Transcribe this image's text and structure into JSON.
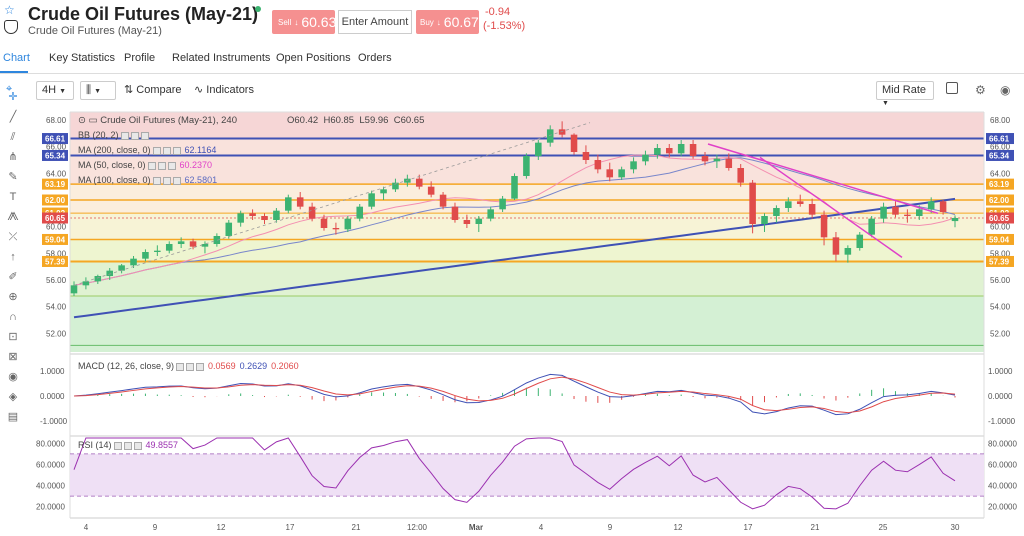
{
  "header": {
    "title": "Crude Oil Futures (May-21)",
    "subtitle": "Crude Oil Futures (May-21)",
    "sell_prefix": "Sell",
    "sell_price": "60.63",
    "amount_placeholder": "Enter Amount",
    "buy_prefix": "Buy",
    "buy_price": "60.67",
    "change_abs": "-0.94",
    "change_pct": "(-1.53%)"
  },
  "tabs": [
    "Chart",
    "Key Statistics",
    "Profile",
    "Related Instruments",
    "Open Positions",
    "Orders"
  ],
  "toolbar": {
    "interval": "4H",
    "compare": "Compare",
    "indicators": "Indicators",
    "rate": "Mid Rate"
  },
  "legend": {
    "symbol": "Crude Oil Futures (May-21), 240",
    "open": "O60.42",
    "high": "H60.85",
    "low": "L59.96",
    "close": "C60.65",
    "bb": "BB (20, 2)",
    "ma200": "MA (200, close, 0)",
    "ma200_val": "62.1164",
    "ma50": "MA (50, close, 0)",
    "ma50_val": "60.2370",
    "ma100": "MA (100, close, 0)",
    "ma100_val": "62.5801",
    "macd": "MACD (12, 26, close, 9)",
    "macd_v1": "0.0569",
    "macd_v2": "0.2629",
    "macd_v3": "0.2060",
    "rsi": "RSI (14)",
    "rsi_val": "49.8557"
  },
  "colors": {
    "up": "#3cb371",
    "down": "#e04b4b",
    "blue": "#3f51b5",
    "orange": "#f5a623",
    "magenta": "#e040c8",
    "accent": "#2e86de"
  },
  "chart_data": {
    "type": "candlestick",
    "y_ticks": [
      "68.00",
      "66.00",
      "64.00",
      "62.00",
      "60.00",
      "58.00",
      "56.00",
      "54.00",
      "52.00"
    ],
    "ylim": [
      50.6,
      68.6
    ],
    "price_tags": [
      "66.61",
      "65.34",
      "63.19",
      "62.00",
      "61.02",
      "60.65",
      "59.04",
      "57.39"
    ],
    "x_ticks": [
      "4",
      "9",
      "12",
      "17",
      "21",
      "12:00",
      "Mar",
      "4",
      "9",
      "12",
      "17",
      "21",
      "25",
      "30"
    ],
    "macd_ticks": [
      "1.0000",
      "0.0000",
      "-1.0000"
    ],
    "rsi_ticks": [
      "80.0000",
      "60.0000",
      "40.0000",
      "20.0000"
    ],
    "candles": [
      [
        55.0,
        55.9,
        54.8,
        55.6
      ],
      [
        55.6,
        56.2,
        55.3,
        55.9
      ],
      [
        55.9,
        56.4,
        55.7,
        56.3
      ],
      [
        56.3,
        56.9,
        56.0,
        56.7
      ],
      [
        56.7,
        57.2,
        56.5,
        57.1
      ],
      [
        57.1,
        57.8,
        56.9,
        57.6
      ],
      [
        57.6,
        58.3,
        57.4,
        58.1
      ],
      [
        58.1,
        58.6,
        57.8,
        58.2
      ],
      [
        58.2,
        58.9,
        58.0,
        58.7
      ],
      [
        58.7,
        59.2,
        58.4,
        58.9
      ],
      [
        58.9,
        59.1,
        58.3,
        58.5
      ],
      [
        58.5,
        58.9,
        58.0,
        58.7
      ],
      [
        58.7,
        59.5,
        58.5,
        59.3
      ],
      [
        59.3,
        60.5,
        59.1,
        60.3
      ],
      [
        60.3,
        61.2,
        60.0,
        61.0
      ],
      [
        61.0,
        61.3,
        60.5,
        60.8
      ],
      [
        60.8,
        61.0,
        60.2,
        60.5
      ],
      [
        60.5,
        61.4,
        60.3,
        61.2
      ],
      [
        61.2,
        62.4,
        61.0,
        62.2
      ],
      [
        62.2,
        62.6,
        61.3,
        61.5
      ],
      [
        61.5,
        61.8,
        60.4,
        60.6
      ],
      [
        60.6,
        60.9,
        59.7,
        59.9
      ],
      [
        59.9,
        60.3,
        59.4,
        59.8
      ],
      [
        59.8,
        60.8,
        59.6,
        60.6
      ],
      [
        60.6,
        61.7,
        60.4,
        61.5
      ],
      [
        61.5,
        62.7,
        61.3,
        62.5
      ],
      [
        62.5,
        63.0,
        62.0,
        62.8
      ],
      [
        62.8,
        63.6,
        62.6,
        63.3
      ],
      [
        63.3,
        63.9,
        63.0,
        63.6
      ],
      [
        63.6,
        63.9,
        62.8,
        63.0
      ],
      [
        63.0,
        63.4,
        62.2,
        62.4
      ],
      [
        62.4,
        62.6,
        61.3,
        61.5
      ],
      [
        61.5,
        61.8,
        60.3,
        60.5
      ],
      [
        60.5,
        60.9,
        59.9,
        60.2
      ],
      [
        60.2,
        60.8,
        59.6,
        60.6
      ],
      [
        60.6,
        61.5,
        60.4,
        61.3
      ],
      [
        61.3,
        62.3,
        61.1,
        62.1
      ],
      [
        62.1,
        64.0,
        62.0,
        63.8
      ],
      [
        63.8,
        65.5,
        63.6,
        65.3
      ],
      [
        65.3,
        66.5,
        65.0,
        66.3
      ],
      [
        66.3,
        67.6,
        66.0,
        67.3
      ],
      [
        67.3,
        67.9,
        66.7,
        66.9
      ],
      [
        66.9,
        67.0,
        65.4,
        65.6
      ],
      [
        65.6,
        66.1,
        64.7,
        65.0
      ],
      [
        65.0,
        65.4,
        64.0,
        64.3
      ],
      [
        64.3,
        64.8,
        63.4,
        63.7
      ],
      [
        63.7,
        64.5,
        63.5,
        64.3
      ],
      [
        64.3,
        65.2,
        64.0,
        64.9
      ],
      [
        64.9,
        65.7,
        64.6,
        65.4
      ],
      [
        65.4,
        66.2,
        65.1,
        65.9
      ],
      [
        65.9,
        66.2,
        65.2,
        65.5
      ],
      [
        65.5,
        66.5,
        65.3,
        66.2
      ],
      [
        66.2,
        66.5,
        65.1,
        65.3
      ],
      [
        65.3,
        65.6,
        64.6,
        64.9
      ],
      [
        64.9,
        65.4,
        64.4,
        65.1
      ],
      [
        65.1,
        65.5,
        64.2,
        64.4
      ],
      [
        64.4,
        64.7,
        63.0,
        63.3
      ],
      [
        63.3,
        63.5,
        59.5,
        60.2
      ],
      [
        60.2,
        61.0,
        59.6,
        60.8
      ],
      [
        60.8,
        61.6,
        60.3,
        61.4
      ],
      [
        61.4,
        62.2,
        61.1,
        61.9
      ],
      [
        61.9,
        62.4,
        61.5,
        61.7
      ],
      [
        61.7,
        62.1,
        60.6,
        60.9
      ],
      [
        60.9,
        61.2,
        58.6,
        59.2
      ],
      [
        59.2,
        59.6,
        57.4,
        57.9
      ],
      [
        57.9,
        58.6,
        57.3,
        58.4
      ],
      [
        58.4,
        59.6,
        58.2,
        59.4
      ],
      [
        59.4,
        60.8,
        59.2,
        60.6
      ],
      [
        60.6,
        61.8,
        60.3,
        61.5
      ],
      [
        61.5,
        61.9,
        60.7,
        60.9
      ],
      [
        60.9,
        61.3,
        60.3,
        60.8
      ],
      [
        60.8,
        61.6,
        60.5,
        61.3
      ],
      [
        61.3,
        62.2,
        61.0,
        61.9
      ],
      [
        61.9,
        62.0,
        60.9,
        61.1
      ],
      [
        60.42,
        60.85,
        59.96,
        60.65
      ]
    ]
  }
}
